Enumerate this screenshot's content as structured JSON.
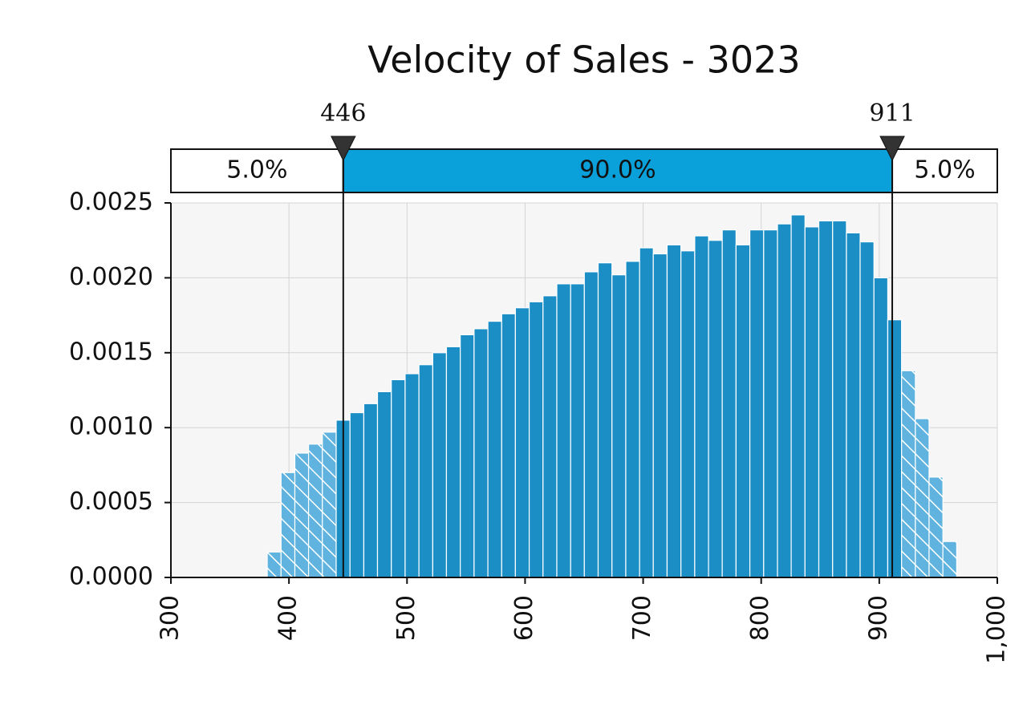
{
  "chart_data": {
    "type": "histogram",
    "title": "Velocity of Sales - 3023",
    "bins": [
      381.6,
      393.3,
      405.0,
      416.6,
      428.3,
      440.0,
      451.7,
      463.4,
      475.0,
      486.7,
      498.4,
      510.1,
      521.8,
      533.4,
      545.1,
      556.8,
      568.5,
      580.2,
      591.8,
      603.5,
      615.2,
      626.9,
      638.6,
      650.2,
      661.9,
      673.6,
      685.3,
      697.0,
      708.6,
      720.3,
      732.0,
      743.7,
      755.4,
      767.0,
      778.7,
      790.4,
      802.1,
      813.8,
      825.4,
      837.1,
      848.8,
      860.5,
      872.2,
      883.8,
      895.5,
      907.2,
      918.9,
      930.6,
      942.2,
      953.9,
      965.6
    ],
    "values": [
      0.00017,
      0.0007,
      0.00083,
      0.00089,
      0.00097,
      0.00105,
      0.0011,
      0.00116,
      0.00124,
      0.00132,
      0.00136,
      0.00142,
      0.0015,
      0.00154,
      0.00162,
      0.00166,
      0.00171,
      0.00176,
      0.0018,
      0.00184,
      0.00188,
      0.00196,
      0.00196,
      0.00204,
      0.0021,
      0.00202,
      0.00211,
      0.0022,
      0.00216,
      0.00222,
      0.00218,
      0.00228,
      0.00225,
      0.00232,
      0.00222,
      0.00232,
      0.00232,
      0.00236,
      0.00242,
      0.00234,
      0.00238,
      0.00238,
      0.0023,
      0.00224,
      0.002,
      0.00172,
      0.00138,
      0.00106,
      0.00067,
      0.00024
    ],
    "color": "#1b8ec6",
    "xlim": [
      300,
      1000
    ],
    "xticks": [
      300,
      400,
      500,
      600,
      700,
      800,
      900,
      {
        "value": 1000,
        "label": "1,000"
      }
    ],
    "ylim": [
      0,
      0.0025
    ],
    "yticks": [
      {
        "value": 0,
        "label": "0.0000"
      },
      {
        "value": 0.0005,
        "label": "0.0005"
      },
      {
        "value": 0.001,
        "label": "0.0010"
      },
      {
        "value": 0.0015,
        "label": "0.0015"
      },
      {
        "value": 0.002,
        "label": "0.0020"
      },
      {
        "value": 0.0025,
        "label": "0.0025"
      }
    ],
    "grid": true,
    "delimiters": [
      446,
      911
    ],
    "regions": {
      "values": [
        5.0,
        90.0,
        5.0
      ],
      "value_labels": [
        "5.0%",
        "90.0%",
        "5.0%"
      ]
    }
  }
}
